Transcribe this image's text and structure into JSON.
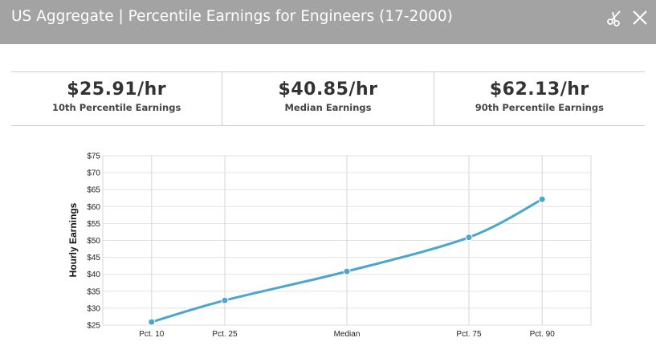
{
  "window": {
    "title": "US Aggregate | Percentile Earnings for Engineers (17-2000)",
    "icons": {
      "scissors": "scissors-icon",
      "close": "close-icon"
    }
  },
  "stats": [
    {
      "value": "$25.91/hr",
      "label": "10th Percentile Earnings"
    },
    {
      "value": "$40.85/hr",
      "label": "Median Earnings"
    },
    {
      "value": "$62.13/hr",
      "label": "90th Percentile Earnings"
    }
  ],
  "chart_data": {
    "type": "line",
    "title": "",
    "xlabel": "",
    "ylabel": "Hourly Earnings",
    "categories": [
      "Pct. 10",
      "Pct. 25",
      "Median",
      "Pct. 75",
      "Pct. 90"
    ],
    "x": [
      10,
      25,
      50,
      75,
      90
    ],
    "series": [
      {
        "values": [
          25.91,
          32.3,
          40.85,
          50.9,
          62.13
        ]
      }
    ],
    "ylim": [
      25,
      75
    ],
    "yticks": [
      "$25",
      "$30",
      "$35",
      "$40",
      "$45",
      "$50",
      "$55",
      "$60",
      "$65",
      "$70",
      "$75"
    ],
    "grid": true,
    "line_color": "#4aa6cf"
  }
}
